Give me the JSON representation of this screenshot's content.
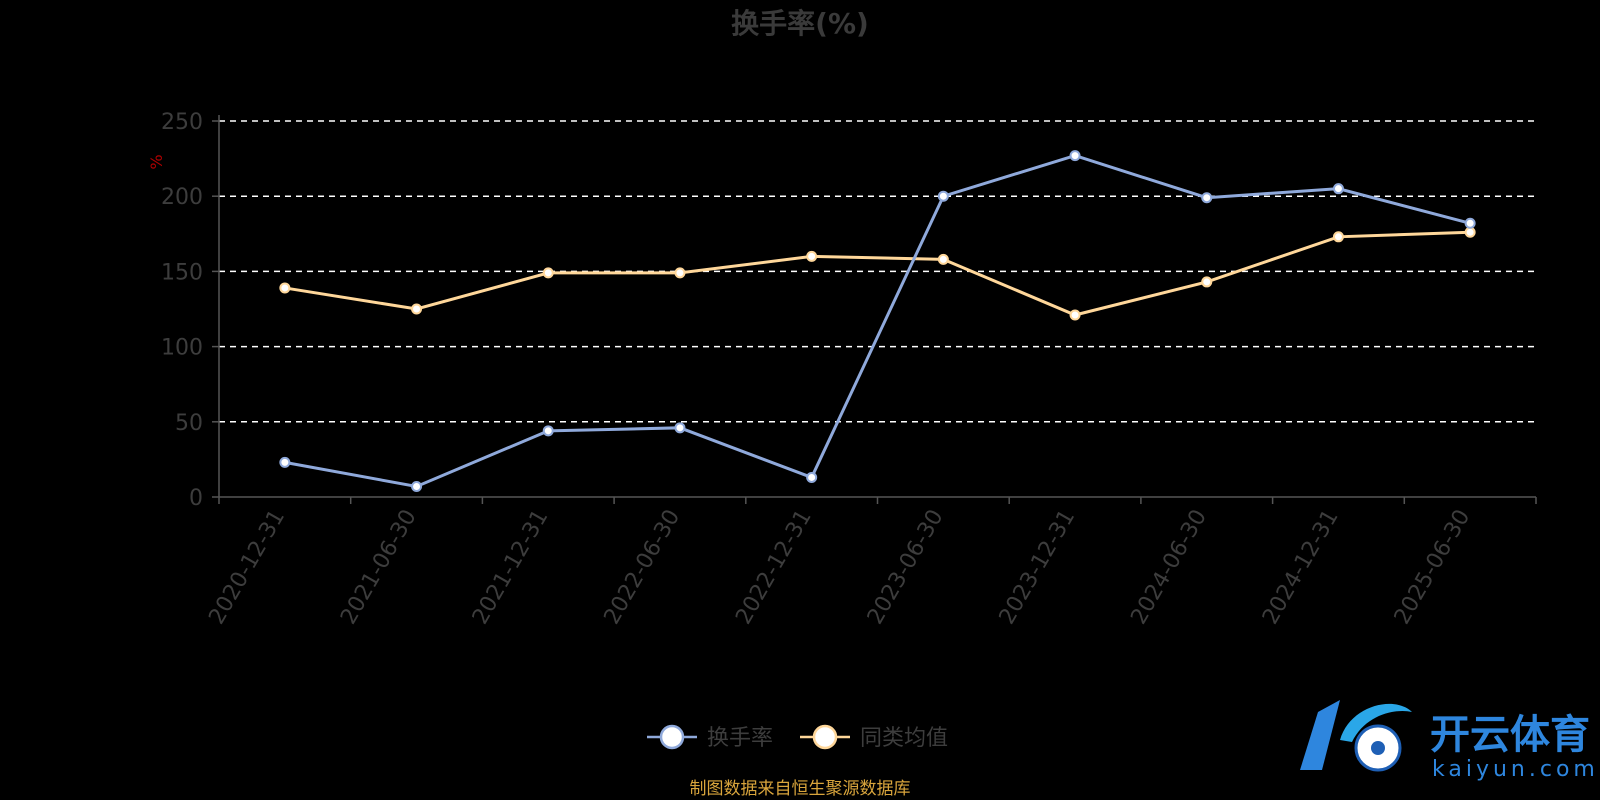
{
  "chart_data": {
    "type": "line",
    "title": "换手率(%)",
    "ylabel": "%",
    "ylim": [
      0,
      250
    ],
    "yticks": [
      0,
      50,
      100,
      150,
      200,
      250
    ],
    "grid": true,
    "legend_position": "bottom-center",
    "categories": [
      "2020-12-31",
      "2021-06-30",
      "2021-12-31",
      "2022-06-30",
      "2022-12-31",
      "2023-06-30",
      "2023-12-31",
      "2024-06-30",
      "2024-12-31",
      "2025-06-30"
    ],
    "series": [
      {
        "name": "换手率",
        "color": "#8fa9db",
        "values": [
          23,
          7,
          44,
          46,
          13,
          200,
          227,
          199,
          205,
          182
        ]
      },
      {
        "name": "同类均值",
        "color": "#ffd79a",
        "values": [
          139,
          125,
          149,
          149,
          160,
          158,
          121,
          143,
          173,
          176
        ]
      }
    ]
  },
  "source_note": "制图数据来自恒生聚源数据库",
  "watermark": {
    "cn": "开云体育",
    "en": "kaiyun.com",
    "color": "#2e86de"
  }
}
